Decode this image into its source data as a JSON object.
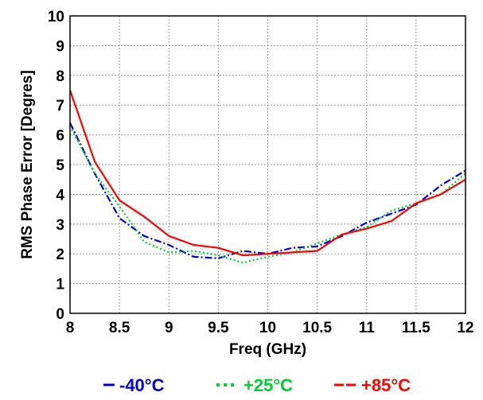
{
  "chart_data": {
    "type": "line",
    "title": "",
    "xlabel": "Freq (GHz)",
    "ylabel": "RMS Phase Error [Degres]",
    "xlim": [
      8,
      12
    ],
    "ylim": [
      0,
      10
    ],
    "xticks": [
      8,
      8.5,
      9,
      9.5,
      10,
      10.5,
      11,
      11.5,
      12
    ],
    "xtick_labels": [
      "8",
      "8.5",
      "9",
      "9.5",
      "10",
      "10.5",
      "11",
      "11.5",
      "12"
    ],
    "yticks": [
      0,
      1,
      2,
      3,
      4,
      5,
      6,
      7,
      8,
      9,
      10
    ],
    "ytick_labels": [
      "0",
      "1",
      "2",
      "3",
      "4",
      "5",
      "6",
      "7",
      "8",
      "9",
      "10"
    ],
    "grid": true,
    "legend_position": "bottom",
    "series": [
      {
        "name": "-40°C",
        "color": "#0000cc",
        "dash": "dashdot",
        "x": [
          8,
          8.25,
          8.5,
          8.75,
          9,
          9.25,
          9.5,
          9.75,
          10,
          10.25,
          10.5,
          10.75,
          11,
          11.25,
          11.5,
          11.75,
          12
        ],
        "y": [
          6.4,
          4.7,
          3.2,
          2.6,
          2.3,
          1.9,
          1.85,
          2.1,
          2.0,
          2.2,
          2.25,
          2.6,
          3.05,
          3.35,
          3.65,
          4.3,
          4.8
        ]
      },
      {
        "name": "+25°C",
        "color": "#00cc33",
        "dash": "dotted",
        "x": [
          8,
          8.25,
          8.5,
          8.75,
          9,
          9.25,
          9.5,
          9.75,
          10,
          10.25,
          10.5,
          10.75,
          11,
          11.25,
          11.5,
          11.75,
          12
        ],
        "y": [
          6.3,
          4.7,
          3.6,
          2.4,
          2.05,
          2.1,
          1.95,
          1.7,
          1.9,
          2.05,
          2.35,
          2.65,
          2.9,
          3.45,
          3.7,
          4.0,
          4.7
        ]
      },
      {
        "name": "+85°C",
        "color": "#ff0000",
        "dash": "solid",
        "x": [
          8,
          8.25,
          8.5,
          8.75,
          9,
          9.25,
          9.5,
          9.75,
          10,
          10.25,
          10.5,
          10.75,
          11,
          11.25,
          11.5,
          11.75,
          12
        ],
        "y": [
          7.5,
          5.1,
          3.8,
          3.25,
          2.6,
          2.3,
          2.2,
          1.95,
          2.0,
          2.05,
          2.1,
          2.65,
          2.85,
          3.1,
          3.7,
          4.0,
          4.5
        ]
      }
    ]
  }
}
